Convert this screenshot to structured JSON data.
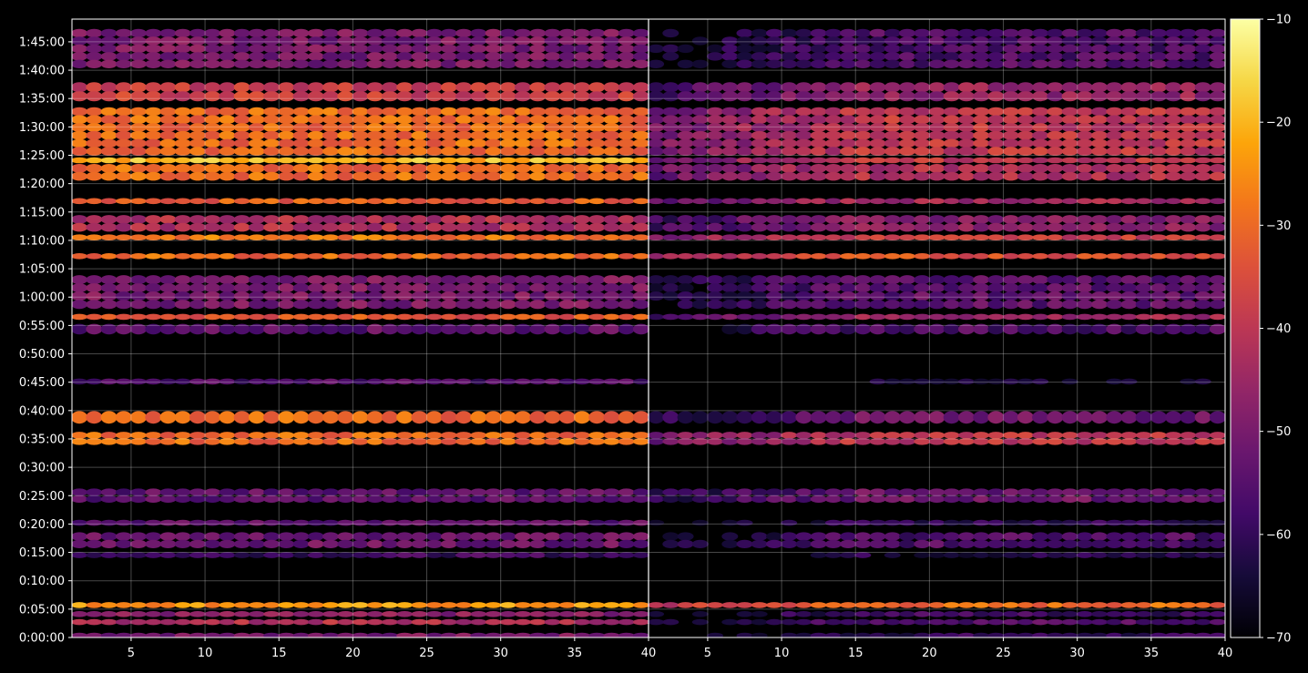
{
  "chart_data": {
    "type": "heatmap",
    "title": "",
    "xlabel": "",
    "ylabel": "",
    "panels": [
      {
        "name": "",
        "x_range": [
          1,
          40
        ]
      },
      {
        "name": "",
        "x_range": [
          1,
          40
        ]
      }
    ],
    "x_ticks": [
      5,
      10,
      15,
      20,
      25,
      30,
      35,
      40
    ],
    "xlim": [
      1,
      40
    ],
    "y_ticks": [
      "0:00:00",
      "0:05:00",
      "0:10:00",
      "0:15:00",
      "0:20:00",
      "0:25:00",
      "0:30:00",
      "0:35:00",
      "0:40:00",
      "0:45:00",
      "0:50:00",
      "0:55:00",
      "1:00:00",
      "1:05:00",
      "1:10:00",
      "1:15:00",
      "1:20:00",
      "1:25:00",
      "1:30:00",
      "1:35:00",
      "1:40:00",
      "1:45:00"
    ],
    "y_tick_minutes": [
      0,
      5,
      10,
      15,
      20,
      25,
      30,
      35,
      40,
      45,
      50,
      55,
      60,
      65,
      70,
      75,
      80,
      85,
      90,
      95,
      100,
      105
    ],
    "ylim_minutes": [
      0,
      109
    ],
    "grid": true,
    "colorbar": {
      "colormap": "inferno",
      "vmin": -70,
      "vmax": -10,
      "ticks": [
        -10,
        -20,
        -30,
        -40,
        -50,
        -60,
        -70
      ],
      "tick_labels": [
        "−10",
        "−20",
        "−30",
        "−40",
        "−50",
        "−60",
        "−70"
      ]
    },
    "bands": [
      {
        "start_min": 0.0,
        "end_min": 0.8,
        "panel1": -50,
        "panel2": -60
      },
      {
        "start_min": 2.4,
        "end_min": 3.2,
        "panel1": -42,
        "panel2": -55
      },
      {
        "start_min": 3.8,
        "end_min": 4.6,
        "panel1": -48,
        "panel2": -58
      },
      {
        "start_min": 5.6,
        "end_min": 6.2,
        "panel1": -24,
        "panel2": -30
      },
      {
        "start_min": 14.5,
        "end_min": 15.0,
        "panel1": -58,
        "panel2": -62
      },
      {
        "start_min": 15.8,
        "end_min": 18.5,
        "panel1": -52,
        "panel2": -56
      },
      {
        "start_min": 20.0,
        "end_min": 20.7,
        "panel1": -54,
        "panel2": -60
      },
      {
        "start_min": 23.8,
        "end_min": 26.2,
        "panel1": -54,
        "panel2": -52
      },
      {
        "start_min": 34.0,
        "end_min": 36.2,
        "panel1": -30,
        "panel2": -40
      },
      {
        "start_min": 37.8,
        "end_min": 39.8,
        "panel1": -30,
        "panel2": -52
      },
      {
        "start_min": 45.0,
        "end_min": 45.6,
        "panel1": -56,
        "panel2": -66
      },
      {
        "start_min": 53.5,
        "end_min": 55.2,
        "panel1": -54,
        "panel2": -56
      },
      {
        "start_min": 56.3,
        "end_min": 57.0,
        "panel1": -33,
        "panel2": -45
      },
      {
        "start_min": 58.0,
        "end_min": 63.8,
        "panel1": -50,
        "panel2": -54
      },
      {
        "start_min": 67.0,
        "end_min": 67.7,
        "panel1": -30,
        "panel2": -34
      },
      {
        "start_min": 70.3,
        "end_min": 71.0,
        "panel1": -28,
        "panel2": -38
      },
      {
        "start_min": 71.6,
        "end_min": 74.4,
        "panel1": -42,
        "panel2": -48
      },
      {
        "start_min": 76.6,
        "end_min": 77.4,
        "panel1": -32,
        "panel2": -44
      },
      {
        "start_min": 80.6,
        "end_min": 83.4,
        "panel1": -30,
        "panel2": -42
      },
      {
        "start_min": 83.8,
        "end_min": 84.6,
        "panel1": -20,
        "panel2": -40
      },
      {
        "start_min": 85.0,
        "end_min": 93.4,
        "panel1": -30,
        "panel2": -40
      },
      {
        "start_min": 94.6,
        "end_min": 97.8,
        "panel1": -38,
        "panel2": -46
      },
      {
        "start_min": 100.4,
        "end_min": 107.2,
        "panel1": -50,
        "panel2": -56
      }
    ]
  }
}
